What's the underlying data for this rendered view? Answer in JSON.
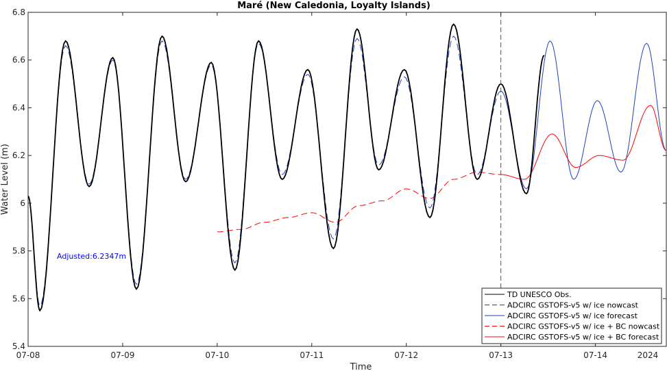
{
  "chart_data": {
    "type": "line",
    "title": "Maré (New Caledonia, Loyalty Islands)",
    "xlabel": "Time",
    "ylabel": "Water Level (m)",
    "xlim": [
      "2024-07-08 00:00",
      "2024-07-14 18:00"
    ],
    "ylim": [
      5.4,
      6.8
    ],
    "x_tick_labels": [
      "07-08",
      "07-09",
      "07-10",
      "07-11",
      "07-12",
      "07-13",
      "07-14"
    ],
    "x_year_label": "2024",
    "y_ticks": [
      5.4,
      5.6,
      5.8,
      6.0,
      6.2,
      6.4,
      6.6,
      6.8
    ],
    "y_tick_labels": [
      "5.4",
      "5.6",
      "5.8",
      "6",
      "6.2",
      "6.4",
      "6.6",
      "6.8"
    ],
    "grid": false,
    "legend_position": "bottom-right",
    "nowcast_forecast_divider": "2024-07-13 00:00",
    "annotation": "Adjusted:6.2347m",
    "colors": {
      "obs": "#000000",
      "nowcast_ice": "#1f3fbf",
      "forecast_ice": "#1f3fbf",
      "bc": "#ff0000"
    },
    "series": [
      {
        "name": "TD UNESCO Obs.",
        "style": "solid",
        "color": "#000000",
        "points": [
          [
            "2024-07-08 00:00",
            6.03
          ],
          [
            "2024-07-08 03:00",
            5.55
          ],
          [
            "2024-07-08 09:30",
            6.68
          ],
          [
            "2024-07-08 15:30",
            6.07
          ],
          [
            "2024-07-08 21:30",
            6.61
          ],
          [
            "2024-07-09 03:30",
            5.64
          ],
          [
            "2024-07-09 10:00",
            6.7
          ],
          [
            "2024-07-09 16:00",
            6.09
          ],
          [
            "2024-07-09 22:30",
            6.59
          ],
          [
            "2024-07-10 04:30",
            5.72
          ],
          [
            "2024-07-10 10:30",
            6.68
          ],
          [
            "2024-07-10 16:30",
            6.1
          ],
          [
            "2024-07-10 23:00",
            6.56
          ],
          [
            "2024-07-11 05:30",
            5.81
          ],
          [
            "2024-07-11 11:30",
            6.73
          ],
          [
            "2024-07-11 17:00",
            6.14
          ],
          [
            "2024-07-11 23:30",
            6.56
          ],
          [
            "2024-07-12 06:00",
            5.94
          ],
          [
            "2024-07-12 12:00",
            6.75
          ],
          [
            "2024-07-12 18:00",
            6.1
          ],
          [
            "2024-07-13 00:00",
            6.5
          ],
          [
            "2024-07-13 06:30",
            6.04
          ],
          [
            "2024-07-13 11:00",
            6.62
          ]
        ]
      },
      {
        "name": "ADCIRC GSTOFS-v5 w/ ice nowcast",
        "style": "dashed",
        "color": "#1f3fbf",
        "points": [
          [
            "2024-07-08 00:00",
            6.03
          ],
          [
            "2024-07-08 03:00",
            5.57
          ],
          [
            "2024-07-08 09:30",
            6.66
          ],
          [
            "2024-07-08 15:30",
            6.08
          ],
          [
            "2024-07-08 21:30",
            6.6
          ],
          [
            "2024-07-09 03:30",
            5.66
          ],
          [
            "2024-07-09 10:00",
            6.68
          ],
          [
            "2024-07-09 16:00",
            6.1
          ],
          [
            "2024-07-09 22:30",
            6.58
          ],
          [
            "2024-07-10 04:30",
            5.75
          ],
          [
            "2024-07-10 10:30",
            6.67
          ],
          [
            "2024-07-10 16:30",
            6.12
          ],
          [
            "2024-07-10 23:00",
            6.54
          ],
          [
            "2024-07-11 05:30",
            5.85
          ],
          [
            "2024-07-11 11:30",
            6.69
          ],
          [
            "2024-07-11 17:00",
            6.16
          ],
          [
            "2024-07-11 23:30",
            6.53
          ],
          [
            "2024-07-12 06:00",
            5.98
          ],
          [
            "2024-07-12 12:00",
            6.7
          ],
          [
            "2024-07-12 18:00",
            6.12
          ],
          [
            "2024-07-13 00:00",
            6.47
          ]
        ]
      },
      {
        "name": "ADCIRC GSTOFS-v5 w/ ice forecast",
        "style": "solid",
        "color": "#1f3fbf",
        "points": [
          [
            "2024-07-13 00:00",
            6.47
          ],
          [
            "2024-07-13 06:30",
            6.06
          ],
          [
            "2024-07-13 12:30",
            6.68
          ],
          [
            "2024-07-13 18:30",
            6.1
          ],
          [
            "2024-07-14 00:30",
            6.43
          ],
          [
            "2024-07-14 06:30",
            6.13
          ],
          [
            "2024-07-14 13:00",
            6.67
          ],
          [
            "2024-07-14 18:00",
            6.22
          ]
        ]
      },
      {
        "name": "ADCIRC GSTOFS-v5 w/ ice + BC nowcast",
        "style": "dashed",
        "color": "#ff0000",
        "points": [
          [
            "2024-07-10 00:00",
            5.88
          ],
          [
            "2024-07-10 06:00",
            5.89
          ],
          [
            "2024-07-10 12:00",
            5.92
          ],
          [
            "2024-07-10 18:00",
            5.94
          ],
          [
            "2024-07-11 00:00",
            5.96
          ],
          [
            "2024-07-11 06:00",
            5.92
          ],
          [
            "2024-07-11 12:00",
            5.99
          ],
          [
            "2024-07-11 18:00",
            6.01
          ],
          [
            "2024-07-12 00:00",
            6.06
          ],
          [
            "2024-07-12 06:00",
            6.02
          ],
          [
            "2024-07-12 12:00",
            6.1
          ],
          [
            "2024-07-12 18:00",
            6.13
          ],
          [
            "2024-07-13 00:00",
            6.12
          ]
        ]
      },
      {
        "name": "ADCIRC GSTOFS-v5 w/ ice + BC forecast",
        "style": "solid",
        "color": "#ff0000",
        "points": [
          [
            "2024-07-13 00:00",
            6.12
          ],
          [
            "2024-07-13 06:00",
            6.1
          ],
          [
            "2024-07-13 13:00",
            6.29
          ],
          [
            "2024-07-13 19:00",
            6.15
          ],
          [
            "2024-07-14 01:00",
            6.2
          ],
          [
            "2024-07-14 07:00",
            6.18
          ],
          [
            "2024-07-14 14:00",
            6.41
          ],
          [
            "2024-07-14 18:00",
            6.22
          ]
        ]
      }
    ]
  }
}
